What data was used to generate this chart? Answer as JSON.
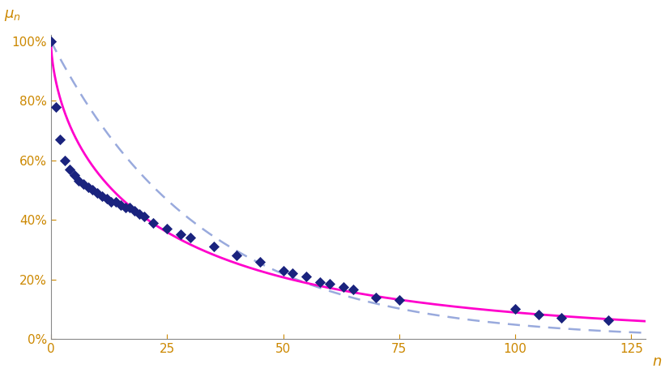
{
  "xlabel": "n",
  "xlim": [
    0,
    128
  ],
  "ylim": [
    0,
    1.02
  ],
  "yticks": [
    0.0,
    0.2,
    0.4,
    0.6,
    0.8,
    1.0
  ],
  "xticks": [
    0,
    25,
    50,
    75,
    100,
    125
  ],
  "data_points_x": [
    0,
    1,
    2,
    3,
    4,
    5,
    6,
    7,
    8,
    9,
    10,
    11,
    12,
    13,
    14,
    15,
    16,
    17,
    18,
    19,
    20,
    22,
    25,
    28,
    30,
    35,
    40,
    45,
    50,
    52,
    55,
    58,
    60,
    63,
    65,
    70,
    75,
    100,
    105,
    110,
    120
  ],
  "data_points_y": [
    1.0,
    0.78,
    0.67,
    0.6,
    0.57,
    0.55,
    0.53,
    0.52,
    0.51,
    0.5,
    0.49,
    0.48,
    0.47,
    0.46,
    0.46,
    0.45,
    0.44,
    0.44,
    0.43,
    0.42,
    0.41,
    0.39,
    0.37,
    0.35,
    0.34,
    0.31,
    0.28,
    0.26,
    0.23,
    0.22,
    0.21,
    0.19,
    0.185,
    0.175,
    0.165,
    0.14,
    0.13,
    0.1,
    0.082,
    0.072,
    0.062
  ],
  "bernoulli_p": 0.97,
  "markov_scale": 24.0,
  "markov_shape": 0.62,
  "data_color": "#1a237e",
  "markov_color": "#ff00cc",
  "bernoulli_color": "#99aadd",
  "background_color": "#ffffff",
  "tick_color": "#cc8800",
  "axis_label_color": "#cc8800"
}
